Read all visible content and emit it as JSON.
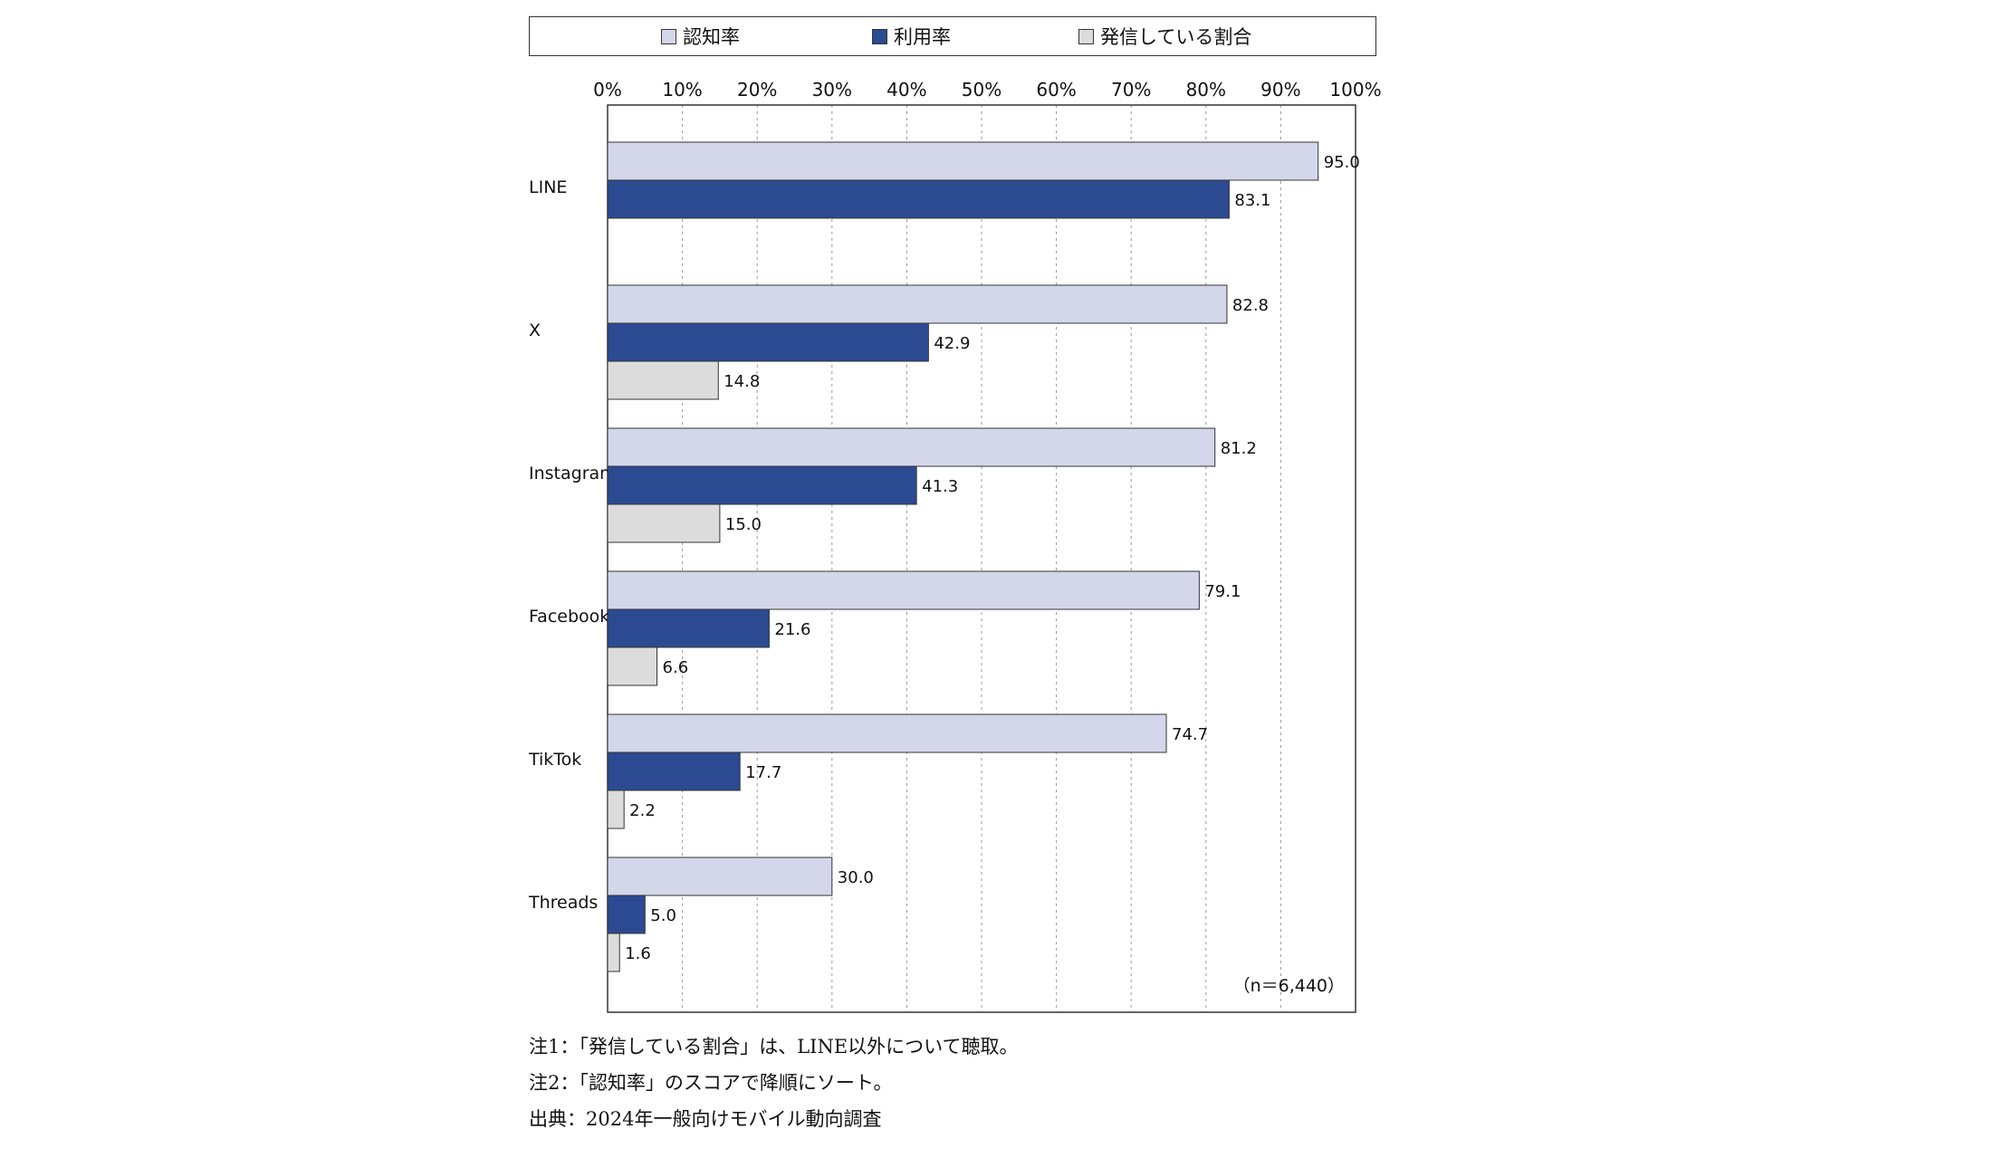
{
  "chart_data": {
    "type": "bar",
    "orientation": "horizontal",
    "categories": [
      "LINE",
      "X",
      "Instagram",
      "Facebook",
      "TikTok",
      "Threads"
    ],
    "series": [
      {
        "name": "認知率",
        "color": "#d4d7ea",
        "values": [
          95.0,
          82.8,
          81.2,
          79.1,
          74.7,
          30.0
        ],
        "labels": [
          "95.0",
          "82.8",
          "81.2",
          "79.1",
          "74.7",
          "30.0"
        ]
      },
      {
        "name": "利用率",
        "color": "#2b4a92",
        "values": [
          83.1,
          42.9,
          41.3,
          21.6,
          17.7,
          5.0
        ],
        "labels": [
          "83.1",
          "42.9",
          "41.3",
          "21.6",
          "17.7",
          "5.0"
        ]
      },
      {
        "name": "発信している割合",
        "color": "#dcdcdc",
        "values": [
          null,
          14.8,
          15.0,
          6.6,
          2.2,
          1.6
        ],
        "labels": [
          null,
          "14.8",
          "15.0",
          "6.6",
          "2.2",
          "1.6"
        ]
      }
    ],
    "xlim": [
      0,
      100
    ],
    "x_ticks": [
      "0%",
      "10%",
      "20%",
      "30%",
      "40%",
      "50%",
      "60%",
      "70%",
      "80%",
      "90%",
      "100%"
    ],
    "grid": "vertical-dashed",
    "legend": "top",
    "sample_size": "（n＝6,440）"
  },
  "notes": [
    "注1：「発信している割合」は、LINE以外について聴取。",
    "注2：「認知率」のスコアで降順にソート。",
    "出典：2024年一般向けモバイル動向調査"
  ]
}
